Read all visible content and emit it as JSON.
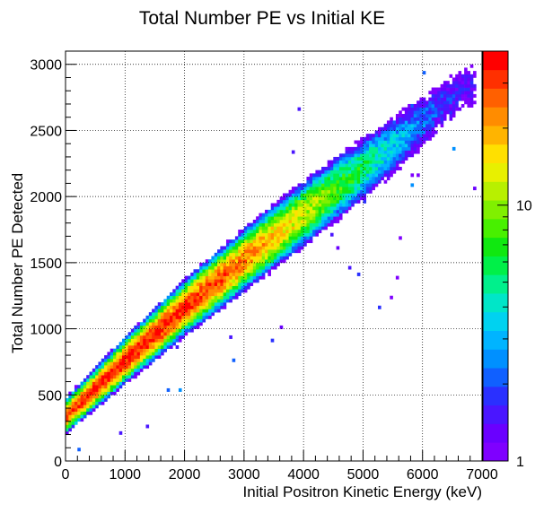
{
  "chart_data": {
    "type": "heatmap",
    "title": "Total Number PE vs Initial KE",
    "xlabel": "Initial Positron Kinetic Energy (keV)",
    "ylabel": "Total Number PE Detected",
    "xlim": [
      0,
      7000
    ],
    "ylim": [
      0,
      3100
    ],
    "x_ticks": [
      "0",
      "1000",
      "2000",
      "3000",
      "4000",
      "5000",
      "6000",
      "7000"
    ],
    "y_ticks": [
      "0",
      "500",
      "1000",
      "1500",
      "2000",
      "2500",
      "3000"
    ],
    "x_tick_values": [
      0,
      1000,
      2000,
      3000,
      4000,
      5000,
      6000,
      7000
    ],
    "y_tick_values": [
      0,
      500,
      1000,
      1500,
      2000,
      2500,
      3000
    ],
    "grid": true,
    "color_scale": {
      "log": true,
      "min": 1,
      "max": 40,
      "labels": [
        "1",
        "10"
      ],
      "label_values": [
        1,
        10
      ],
      "palette": [
        "#7f00ff",
        "#6a00ff",
        "#4a16ff",
        "#2a30ff",
        "#1060ff",
        "#0090ff",
        "#00b4ff",
        "#00d2f0",
        "#00e6c8",
        "#00f08c",
        "#00f048",
        "#10e810",
        "#48f000",
        "#80f000",
        "#b8f000",
        "#e8f000",
        "#ffe000",
        "#ffb400",
        "#ff8c00",
        "#ff6000",
        "#ff3000",
        "#ff0000"
      ]
    },
    "distribution": {
      "description_points": [
        {
          "x": 100,
          "y": 380
        },
        {
          "x": 1000,
          "y": 760
        },
        {
          "x": 2000,
          "y": 1160
        },
        {
          "x": 3000,
          "y": 1520
        },
        {
          "x": 4000,
          "y": 1870
        },
        {
          "x": 5000,
          "y": 2210
        },
        {
          "x": 6000,
          "y": 2560
        },
        {
          "x": 6700,
          "y": 2830
        }
      ],
      "peak_count_x": 1300,
      "peak_count": 35,
      "bin_width_x": 50,
      "bin_width_y": 25
    }
  }
}
